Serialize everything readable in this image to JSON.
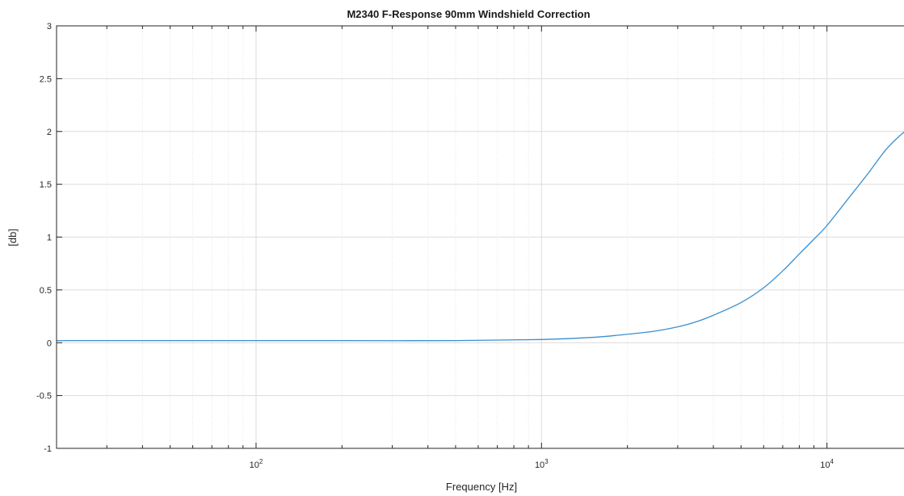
{
  "chart_data": {
    "type": "line",
    "title": "M2340 F-Response 90mm Windshield Correction",
    "xlabel": "Frequency [Hz]",
    "ylabel": "[db]",
    "xscale": "log",
    "xlim": [
      20,
      20000
    ],
    "ylim": [
      -1,
      3
    ],
    "grid": true,
    "colors": {
      "series": "#3a8fce"
    },
    "y_ticks": [
      {
        "value": -1,
        "label": "-1"
      },
      {
        "value": -0.5,
        "label": "-0.5"
      },
      {
        "value": 0,
        "label": "0"
      },
      {
        "value": 0.5,
        "label": "0.5"
      },
      {
        "value": 1,
        "label": "1"
      },
      {
        "value": 1.5,
        "label": "1.5"
      },
      {
        "value": 2,
        "label": "2"
      },
      {
        "value": 2.5,
        "label": "2.5"
      },
      {
        "value": 3,
        "label": "3"
      }
    ],
    "x_ticks": [
      {
        "value": 100,
        "base": "10",
        "exp": "2"
      },
      {
        "value": 1000,
        "base": "10",
        "exp": "3"
      },
      {
        "value": 10000,
        "base": "10",
        "exp": "4"
      }
    ],
    "series": [
      {
        "x": [
          20,
          50,
          100,
          200,
          500,
          1000,
          1500,
          2000,
          2500,
          3000,
          3500,
          4000,
          5000,
          6000,
          7000,
          8000,
          9000,
          10000,
          12000,
          14000,
          16000,
          18000,
          20000
        ],
        "y": [
          0.02,
          0.02,
          0.02,
          0.02,
          0.02,
          0.03,
          0.05,
          0.08,
          0.11,
          0.15,
          0.2,
          0.26,
          0.38,
          0.52,
          0.68,
          0.84,
          0.98,
          1.11,
          1.38,
          1.61,
          1.82,
          1.96,
          2.06
        ]
      }
    ]
  }
}
